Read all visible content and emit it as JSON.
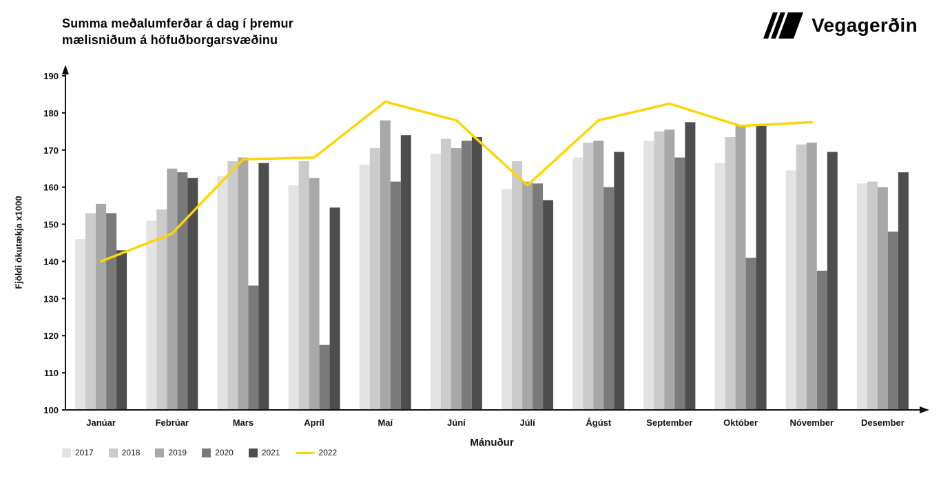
{
  "header": {
    "title_line1": "Summa meðalumferðar á dag í þremur",
    "title_line2": "mælisniðum á höfuðborgarsvæðinu",
    "brand": "Vegagerðin"
  },
  "chart_data": {
    "type": "bar",
    "title": "Summa meðalumferðar á dag í þremur mælisniðum á höfuðborgarsvæðinu",
    "xlabel": "Mánuður",
    "ylabel": "Fjöldi ökutækja x1000",
    "ylim": [
      100,
      190
    ],
    "ytick_step": 10,
    "grid": false,
    "legend_position": "bottom-left",
    "categories": [
      "Janúar",
      "Febrúar",
      "Mars",
      "Apríl",
      "Maí",
      "Júní",
      "Júlí",
      "Ágúst",
      "September",
      "Október",
      "Nóvember",
      "Desember"
    ],
    "series": [
      {
        "name": "2017",
        "type": "bar",
        "color": "#e3e3e3",
        "values": [
          146,
          151,
          163,
          160.5,
          166,
          169,
          159.5,
          168,
          172.5,
          166.5,
          164.5,
          161
        ]
      },
      {
        "name": "2018",
        "type": "bar",
        "color": "#cbcbcb",
        "values": [
          153,
          154,
          167,
          167,
          170.5,
          173,
          167,
          172,
          175,
          173.5,
          171.5,
          161.5
        ]
      },
      {
        "name": "2019",
        "type": "bar",
        "color": "#a8a8a8",
        "values": [
          155.5,
          165,
          168,
          162.5,
          178,
          170.5,
          161.5,
          172.5,
          175.5,
          176.5,
          172,
          160
        ]
      },
      {
        "name": "2020",
        "type": "bar",
        "color": "#7a7a7a",
        "values": [
          153,
          164,
          133.5,
          117.5,
          161.5,
          172.5,
          161,
          160,
          168,
          141,
          137.5,
          148
        ]
      },
      {
        "name": "2021",
        "type": "bar",
        "color": "#4e4e4e",
        "values": [
          143,
          162.5,
          166.5,
          154.5,
          174,
          173.5,
          156.5,
          169.5,
          177.5,
          176.5,
          169.5,
          164
        ]
      },
      {
        "name": "2022",
        "type": "line",
        "color": "#ffd500",
        "values": [
          140,
          147.5,
          167.5,
          168,
          183,
          178,
          160.5,
          178,
          182.5,
          176.5,
          177.5,
          null
        ]
      }
    ]
  }
}
